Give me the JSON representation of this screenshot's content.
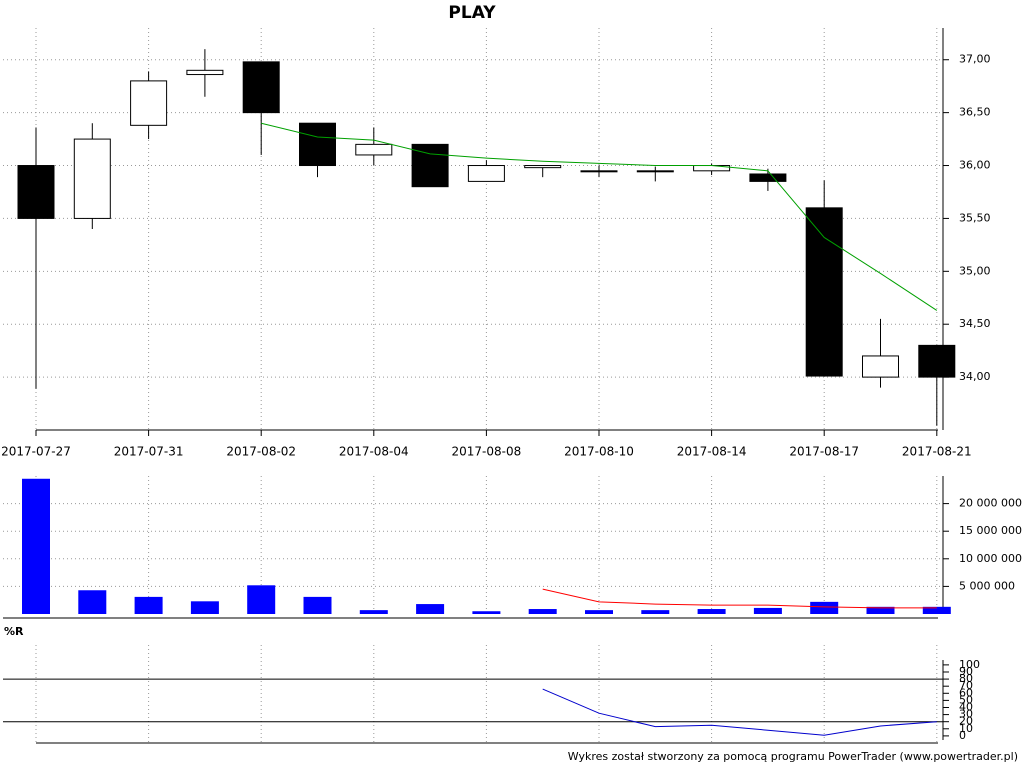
{
  "chart_data": [
    {
      "type": "candlestick",
      "title": "PLAY",
      "categories": [
        "2017-07-27",
        null,
        "2017-07-31",
        null,
        "2017-08-02",
        null,
        "2017-08-04",
        null,
        "2017-08-08",
        null,
        "2017-08-10",
        null,
        "2017-08-14",
        null,
        "2017-08-17",
        null,
        "2017-08-21"
      ],
      "open": [
        36.0,
        35.5,
        36.38,
        36.86,
        36.98,
        36.4,
        36.1,
        36.2,
        35.85,
        35.98,
        35.95,
        35.95,
        35.95,
        35.92,
        35.6,
        34.0,
        34.3
      ],
      "high": [
        36.36,
        36.4,
        36.89,
        37.1,
        36.98,
        36.4,
        36.36,
        36.2,
        36.05,
        36.0,
        36.0,
        35.99,
        36.02,
        35.97,
        35.86,
        34.55,
        34.3
      ],
      "low": [
        33.89,
        35.4,
        36.25,
        36.65,
        36.1,
        35.89,
        36.0,
        35.8,
        35.85,
        35.89,
        35.89,
        35.85,
        35.91,
        35.76,
        34.01,
        33.9,
        33.54
      ],
      "close": [
        35.5,
        36.25,
        36.8,
        36.9,
        36.5,
        36.0,
        36.2,
        35.8,
        36.0,
        36.0,
        35.95,
        35.95,
        36.0,
        35.85,
        34.01,
        34.2,
        34.0
      ],
      "series": [
        {
          "color": "#00a000",
          "values": [
            null,
            null,
            null,
            null,
            36.4,
            36.27,
            36.24,
            36.11,
            36.07,
            36.04,
            36.02,
            36.0,
            36.0,
            35.95,
            35.32,
            34.98,
            34.63
          ]
        }
      ],
      "ylim": [
        33.5,
        37.3
      ],
      "yticks": [
        {
          "value": 34,
          "label": "34,00"
        },
        {
          "value": 34.5,
          "label": "34,50"
        },
        {
          "value": 35,
          "label": "35,00"
        },
        {
          "value": 35.5,
          "label": "35,50"
        },
        {
          "value": 36,
          "label": "36,00"
        },
        {
          "value": 36.5,
          "label": "36,50"
        },
        {
          "value": 37,
          "label": "37,00"
        }
      ],
      "grid": true
    },
    {
      "type": "bar",
      "color": "#0000ff",
      "values": [
        24500000,
        4300000,
        3100000,
        2300000,
        5200000,
        3100000,
        700000,
        1800000,
        500000,
        900000,
        700000,
        700000,
        900000,
        1100000,
        2200000,
        1300000,
        1300000
      ],
      "series": [
        {
          "color": "#ff0000",
          "values": [
            null,
            null,
            null,
            null,
            null,
            null,
            null,
            null,
            null,
            4500000,
            2200000,
            1800000,
            1600000,
            1600000,
            1300000,
            1100000,
            1100000
          ]
        }
      ],
      "ylim": [
        0,
        25000000
      ],
      "yticks": [
        {
          "value": 5000000,
          "label": "5 000 000"
        },
        {
          "value": 10000000,
          "label": "10 000 000"
        },
        {
          "value": 15000000,
          "label": "15 000 000"
        },
        {
          "value": 20000000,
          "label": "20 000 000"
        }
      ],
      "grid": true
    },
    {
      "type": "line",
      "title": "%R",
      "series": [
        {
          "color": "#0000cc",
          "values": [
            null,
            null,
            null,
            null,
            null,
            null,
            null,
            null,
            null,
            66,
            32,
            13,
            15,
            8,
            1,
            14,
            20
          ]
        }
      ],
      "levels": [
        20,
        80
      ],
      "ylim": [
        -10,
        128
      ],
      "yticks": [
        0,
        10,
        20,
        30,
        40,
        50,
        60,
        70,
        80,
        90,
        100
      ],
      "grid": true
    }
  ],
  "footer": "Wykres został stworzony za pomocą programu PowerTrader (www.powertrader.pl)"
}
